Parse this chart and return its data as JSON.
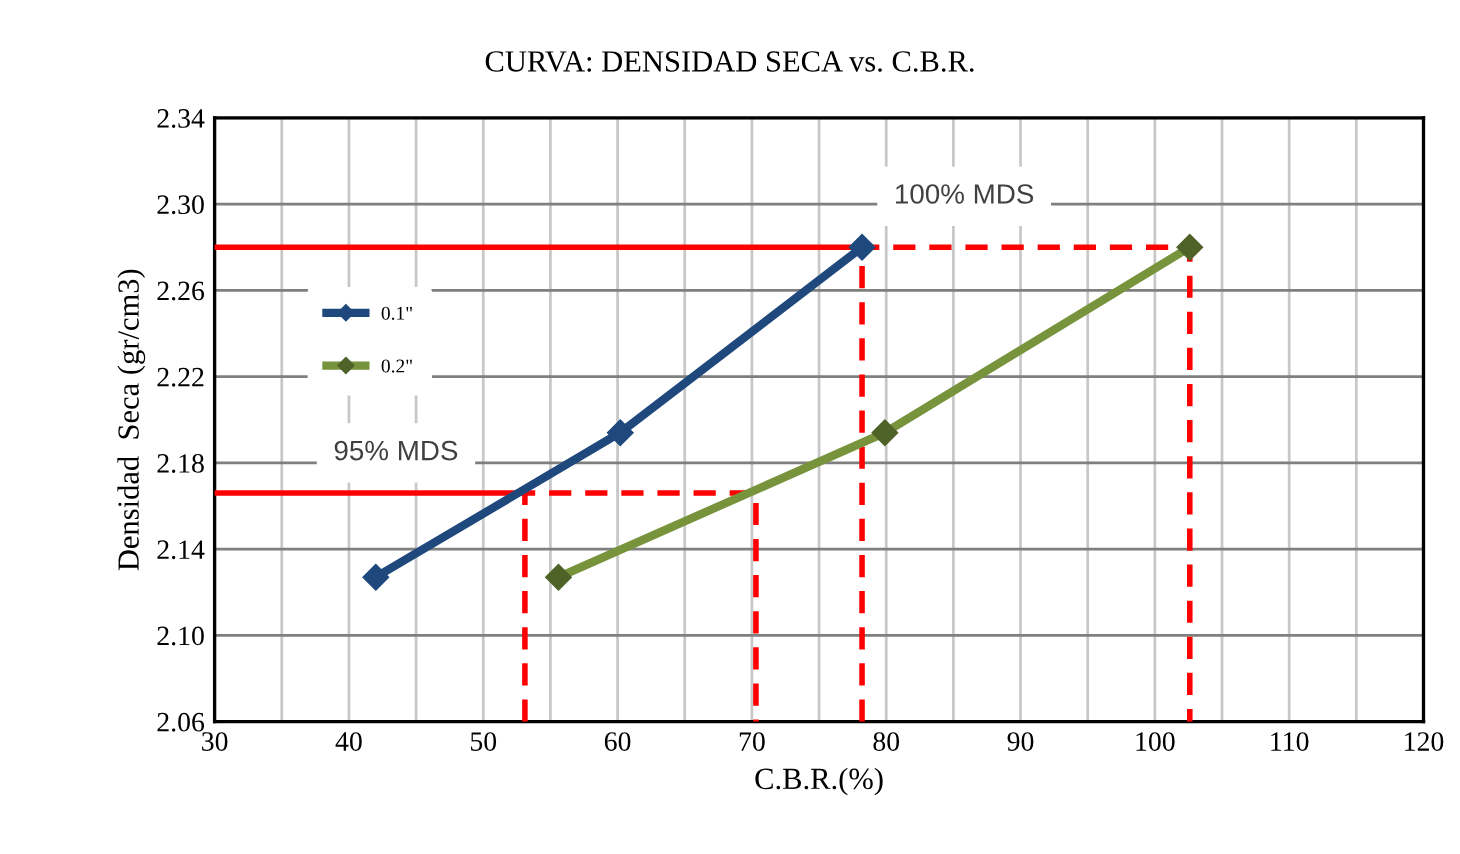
{
  "chart_data": {
    "type": "line",
    "title": "CURVA: DENSIDAD SECA vs. C.B.R.",
    "xlabel": "C.B.R.(%)",
    "ylabel": "Densidad  Seca (gr/cm3)",
    "series": [
      {
        "name": "0.1\"",
        "color": "#1f497d",
        "x": [
          42.0,
          60.2,
          78.2
        ],
        "values": [
          2.127,
          2.194,
          2.28
        ],
        "marker": "diamond"
      },
      {
        "name": "0.2\"",
        "color": "#77933c",
        "x": [
          55.6,
          79.9,
          102.6
        ],
        "values": [
          2.127,
          2.194,
          2.28
        ],
        "marker": "diamond"
      },
      {
        "color": "#ff0000",
        "x": [
          30,
          53.1
        ],
        "values": [
          2.166,
          2.166
        ],
        "line_style": "solid",
        "marker": "none"
      },
      {
        "color": "#ff0000",
        "x": [
          53.1,
          53.1,
          70.3,
          70.3
        ],
        "values": [
          2.06,
          2.166,
          2.166,
          2.06
        ],
        "line_style": "dashed",
        "marker": "none"
      },
      {
        "color": "#ff0000",
        "x": [
          30,
          78.2
        ],
        "values": [
          2.28,
          2.28
        ],
        "line_style": "solid",
        "marker": "none"
      },
      {
        "color": "#ff0000",
        "x": [
          78.2,
          78.2,
          102.6,
          102.6
        ],
        "values": [
          2.06,
          2.28,
          2.28,
          2.06
        ],
        "line_style": "dashed",
        "marker": "none"
      }
    ],
    "annotations": [
      "95% MDS",
      "100% MDS"
    ],
    "xlim": [
      30,
      120
    ],
    "ylim": [
      2.06,
      2.34
    ],
    "xticks": [
      30,
      {
        "value": 35,
        "label": null
      },
      40,
      {
        "value": 45,
        "label": null
      },
      50,
      {
        "value": 55,
        "label": null
      },
      60,
      {
        "value": 65,
        "label": null
      },
      70,
      {
        "value": 75,
        "label": null
      },
      80,
      {
        "value": 85,
        "label": null
      },
      90,
      {
        "value": 95,
        "label": null
      },
      100,
      {
        "value": 105,
        "label": null
      },
      110,
      {
        "value": 115,
        "label": null
      },
      120
    ],
    "yticks": [
      {
        "value": 2.06,
        "label": "2.06"
      },
      {
        "value": 2.1,
        "label": "2.10"
      },
      {
        "value": 2.14,
        "label": "2.14"
      },
      {
        "value": 2.18,
        "label": "2.18"
      },
      {
        "value": 2.22,
        "label": "2.22"
      },
      {
        "value": 2.26,
        "label": "2.26"
      },
      {
        "value": 2.3,
        "label": "2.30"
      },
      {
        "value": 2.34,
        "label": "2.34"
      }
    ],
    "grid": true,
    "legend": "left"
  }
}
